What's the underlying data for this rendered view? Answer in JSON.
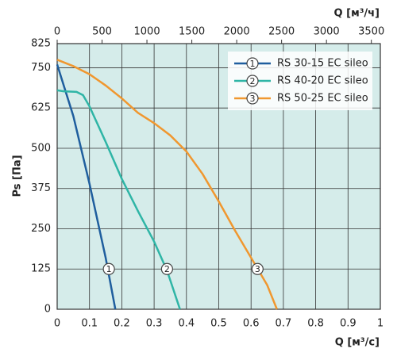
{
  "chart_data": {
    "type": "line",
    "ylabel": "Ps [Па]",
    "xlabel": "Q [м³/с]",
    "x2label": "Q [м³/ч]",
    "xlim": [
      0,
      1
    ],
    "xticks": [
      0,
      0.1,
      0.2,
      0.3,
      0.4,
      0.5,
      0.6,
      0.7,
      0.8,
      0.9,
      1
    ],
    "x2lim": [
      0,
      3600
    ],
    "x2ticks": [
      0,
      500,
      1000,
      1500,
      2000,
      2500,
      3000,
      3500
    ],
    "ylim": [
      0,
      825
    ],
    "yticks": [
      0,
      125,
      250,
      375,
      500,
      625,
      750,
      825
    ],
    "grid": true,
    "legend": "upper right",
    "background": "#d5ecea",
    "series": [
      {
        "name": "RS 30-15 EC sileo",
        "color": "#1f5e9e",
        "label": "1",
        "label_at": [
          0.16,
          125
        ],
        "x": [
          0,
          0.05,
          0.1,
          0.15,
          0.18
        ],
        "values": [
          760,
          600,
          390,
          160,
          0
        ]
      },
      {
        "name": "RS 40-20 EC sileo",
        "color": "#2fb5a6",
        "label": "2",
        "label_at": [
          0.34,
          125
        ],
        "x": [
          0,
          0.02,
          0.06,
          0.08,
          0.1,
          0.15,
          0.2,
          0.25,
          0.3,
          0.34,
          0.36,
          0.38
        ],
        "values": [
          680,
          677,
          675,
          665,
          630,
          520,
          405,
          305,
          210,
          120,
          60,
          0
        ]
      },
      {
        "name": "RS 50-25 EC sileo",
        "color": "#f0972f",
        "label": "3",
        "label_at": [
          0.62,
          125
        ],
        "x": [
          0,
          0.05,
          0.1,
          0.15,
          0.2,
          0.25,
          0.3,
          0.35,
          0.4,
          0.45,
          0.5,
          0.55,
          0.6,
          0.65,
          0.68
        ],
        "values": [
          775,
          755,
          730,
          695,
          655,
          610,
          578,
          540,
          490,
          420,
          335,
          245,
          160,
          75,
          0
        ]
      }
    ]
  }
}
